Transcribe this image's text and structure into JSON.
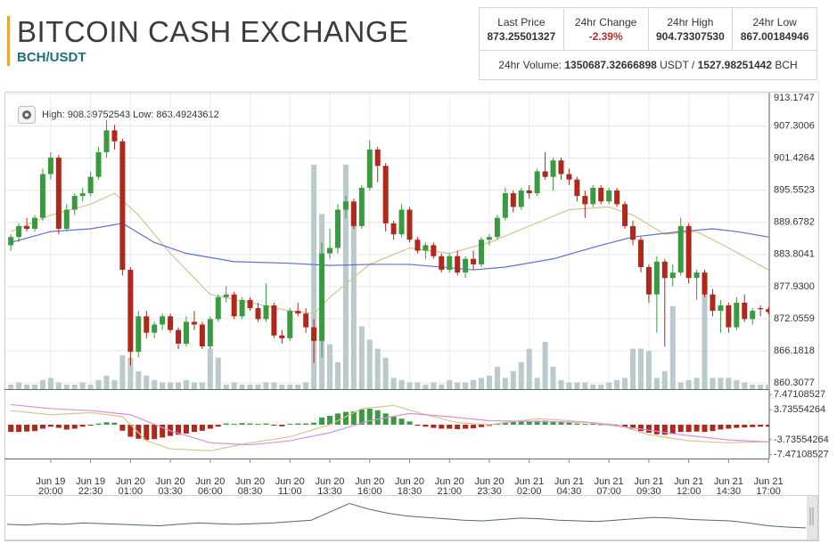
{
  "header": {
    "title": "BITCOIN CASH EXCHANGE",
    "pair": "BCH/USDT"
  },
  "stats": {
    "cells": [
      {
        "label": "Last Price",
        "value": "873.25501327"
      },
      {
        "label": "24hr Change",
        "value": "-2.39%"
      },
      {
        "label": "24hr High",
        "value": "904.73307530"
      },
      {
        "label": "24hr Low",
        "value": "867.00184946"
      }
    ],
    "volume": {
      "label": "24hr Volume:",
      "quote": "1350687.32666898",
      "quote_unit": "USDT /",
      "base": "1527.98251442",
      "base_unit": "BCH"
    }
  },
  "chart_data": [
    {
      "type": "candlestick",
      "annotation": "High: 908.39752543  Low: 863.49243612",
      "up_color": "#3a9a3f",
      "down_color": "#b0271c",
      "grid": true,
      "xlim": [
        -0.8,
        95.1
      ],
      "ylim": [
        859.2,
        913.4
      ],
      "yticks": [
        913.1747,
        907.3006,
        901.4264,
        895.5523,
        889.6782,
        883.8041,
        {
          "value": 877.93,
          "label": "877.9300"
        },
        872.0559,
        866.1818,
        860.3077
      ],
      "categories": [
        null,
        null,
        null,
        null,
        null,
        [
          "Jun 19",
          "20:00"
        ],
        null,
        null,
        null,
        null,
        [
          "Jun 19",
          "22:30"
        ],
        null,
        null,
        null,
        null,
        [
          "Jun 20",
          "01:00"
        ],
        null,
        null,
        null,
        null,
        [
          "Jun 20",
          "03:30"
        ],
        null,
        null,
        null,
        null,
        [
          "Jun 20",
          "06:00"
        ],
        null,
        null,
        null,
        null,
        [
          "Jun 20",
          "08:30"
        ],
        null,
        null,
        null,
        null,
        [
          "Jun 20",
          "11:00"
        ],
        null,
        null,
        null,
        null,
        [
          "Jun 20",
          "13:30"
        ],
        null,
        null,
        null,
        null,
        [
          "Jun 20",
          "16:00"
        ],
        null,
        null,
        null,
        null,
        [
          "Jun 20",
          "18:30"
        ],
        null,
        null,
        null,
        null,
        [
          "Jun 20",
          "21:00"
        ],
        null,
        null,
        null,
        null,
        [
          "Jun 20",
          "23:30"
        ],
        null,
        null,
        null,
        null,
        [
          "Jun 21",
          "02:00"
        ],
        null,
        null,
        null,
        null,
        [
          "Jun 21",
          "04:30"
        ],
        null,
        null,
        null,
        null,
        [
          "Jun 21",
          "07:00"
        ],
        null,
        null,
        null,
        null,
        [
          "Jun 21",
          "09:30"
        ],
        null,
        null,
        null,
        null,
        [
          "Jun 21",
          "12:00"
        ],
        null,
        null,
        null,
        null,
        [
          "Jun 21",
          "14:30"
        ],
        null,
        null,
        null,
        null,
        [
          "Jun 21",
          "17:00"
        ]
      ],
      "ohlc": [
        [
          885.5,
          887.5,
          884.5,
          887.0
        ],
        [
          887.0,
          889.5,
          886.0,
          889.0
        ],
        [
          889.0,
          890.5,
          888.0,
          888.5
        ],
        [
          888.5,
          891.0,
          888.0,
          890.5
        ],
        [
          890.5,
          899.5,
          890.0,
          898.5
        ],
        [
          898.5,
          902.5,
          897.5,
          901.5
        ],
        [
          901.5,
          902.0,
          887.5,
          888.5
        ],
        [
          888.5,
          893.0,
          888.0,
          892.0
        ],
        [
          892.0,
          895.0,
          891.0,
          894.5
        ],
        [
          894.5,
          896.0,
          893.5,
          895.0
        ],
        [
          895.0,
          899.0,
          894.5,
          898.0
        ],
        [
          898.0,
          903.5,
          897.5,
          902.5
        ],
        [
          902.5,
          908.4,
          901.5,
          906.5
        ],
        [
          906.5,
          907.5,
          903.0,
          904.5
        ],
        [
          904.5,
          905.0,
          880.0,
          881.0
        ],
        [
          881.0,
          881.5,
          863.5,
          866.0
        ],
        [
          866.0,
          873.5,
          865.0,
          872.5
        ],
        [
          872.5,
          873.5,
          868.5,
          869.5
        ],
        [
          869.5,
          871.5,
          868.5,
          871.0
        ],
        [
          871.0,
          873.0,
          870.0,
          872.5
        ],
        [
          872.5,
          873.0,
          869.5,
          870.0
        ],
        [
          870.0,
          870.5,
          866.5,
          867.5
        ],
        [
          867.5,
          872.5,
          867.0,
          871.5
        ],
        [
          871.5,
          873.5,
          870.0,
          871.0
        ],
        [
          871.0,
          871.5,
          866.5,
          867.0
        ],
        [
          867.0,
          872.5,
          866.5,
          872.0
        ],
        [
          872.0,
          876.5,
          871.5,
          876.0
        ],
        [
          876.0,
          878.0,
          875.0,
          876.5
        ],
        [
          876.5,
          877.0,
          872.0,
          872.5
        ],
        [
          872.5,
          876.0,
          872.0,
          875.5
        ],
        [
          875.5,
          876.0,
          873.5,
          874.0
        ],
        [
          874.0,
          875.0,
          871.5,
          872.0
        ],
        [
          872.0,
          878.5,
          871.5,
          874.5
        ],
        [
          874.5,
          875.0,
          868.5,
          869.0
        ],
        [
          869.0,
          870.0,
          867.5,
          868.5
        ],
        [
          868.5,
          874.0,
          868.0,
          873.5
        ],
        [
          873.5,
          875.0,
          872.5,
          873.0
        ],
        [
          873.0,
          874.0,
          869.5,
          870.5
        ],
        [
          870.5,
          872.0,
          864.0,
          868.0
        ],
        [
          868.0,
          886.0,
          865.0,
          884.0
        ],
        [
          884.0,
          888.5,
          883.0,
          885.0
        ],
        [
          885.0,
          893.0,
          884.0,
          892.0
        ],
        [
          892.0,
          894.5,
          890.5,
          893.5
        ],
        [
          893.5,
          894.0,
          888.5,
          889.0
        ],
        [
          889.0,
          896.5,
          888.5,
          896.0
        ],
        [
          896.0,
          904.7,
          895.5,
          903.0
        ],
        [
          903.0,
          903.5,
          897.0,
          900.0
        ],
        [
          900.0,
          900.5,
          888.0,
          889.5
        ],
        [
          889.5,
          890.0,
          886.5,
          887.5
        ],
        [
          887.5,
          893.0,
          887.0,
          892.0
        ],
        [
          892.0,
          892.5,
          886.0,
          886.5
        ],
        [
          886.5,
          887.0,
          884.0,
          884.5
        ],
        [
          884.5,
          886.0,
          883.0,
          885.5
        ],
        [
          885.5,
          886.0,
          883.0,
          883.5
        ],
        [
          883.5,
          884.0,
          880.5,
          881.0
        ],
        [
          881.0,
          884.0,
          880.5,
          883.5
        ],
        [
          883.5,
          884.5,
          880.0,
          880.5
        ],
        [
          880.5,
          883.5,
          879.5,
          883.0
        ],
        [
          883.0,
          884.5,
          881.0,
          882.0
        ],
        [
          882.0,
          887.0,
          881.5,
          886.5
        ],
        [
          886.5,
          887.5,
          885.5,
          887.0
        ],
        [
          887.0,
          891.0,
          886.5,
          890.5
        ],
        [
          890.5,
          896.0,
          890.0,
          895.0
        ],
        [
          895.0,
          895.5,
          891.5,
          892.5
        ],
        [
          892.5,
          896.0,
          892.0,
          895.5
        ],
        [
          895.5,
          896.5,
          894.0,
          895.0
        ],
        [
          895.0,
          899.5,
          894.5,
          899.0
        ],
        [
          899.0,
          902.5,
          897.5,
          898.0
        ],
        [
          898.0,
          901.5,
          895.5,
          901.0
        ],
        [
          901.0,
          901.5,
          897.5,
          898.5
        ],
        [
          898.5,
          899.5,
          896.5,
          897.5
        ],
        [
          897.5,
          898.0,
          893.5,
          894.5
        ],
        [
          894.5,
          895.5,
          890.5,
          893.0
        ],
        [
          893.0,
          896.5,
          892.5,
          896.0
        ],
        [
          896.0,
          896.5,
          893.0,
          893.5
        ],
        [
          893.5,
          896.0,
          893.0,
          895.5
        ],
        [
          895.5,
          896.0,
          892.5,
          893.0
        ],
        [
          893.0,
          893.5,
          888.5,
          889.0
        ],
        [
          889.0,
          890.0,
          885.5,
          886.5
        ],
        [
          886.5,
          887.0,
          880.5,
          881.5
        ],
        [
          881.5,
          882.0,
          875.0,
          876.5
        ],
        [
          876.5,
          883.5,
          869.5,
          882.5
        ],
        [
          882.5,
          883.0,
          867.0,
          879.5
        ],
        [
          879.5,
          882.0,
          878.0,
          880.5
        ],
        [
          880.5,
          890.5,
          880.0,
          889.0
        ],
        [
          889.0,
          889.5,
          878.5,
          879.5
        ],
        [
          879.5,
          881.0,
          875.5,
          880.5
        ],
        [
          880.5,
          881.0,
          876.0,
          876.5
        ],
        [
          876.5,
          877.5,
          872.5,
          873.5
        ],
        [
          873.5,
          875.5,
          869.5,
          874.5
        ],
        [
          874.5,
          875.0,
          869.5,
          870.5
        ],
        [
          870.5,
          876.0,
          870.0,
          875.0
        ],
        [
          875.0,
          876.5,
          871.5,
          872.0
        ],
        [
          872.0,
          874.0,
          871.0,
          873.5
        ],
        [
          874.0,
          874.5,
          872.5,
          873.8
        ],
        [
          873.8,
          874.2,
          872.9,
          873.3
        ]
      ],
      "volume": {
        "color": "#b9c9cc",
        "ylim": [
          0,
          100
        ],
        "values": [
          2,
          3,
          2,
          2,
          4,
          5,
          3,
          2,
          2,
          3,
          2,
          4,
          6,
          4,
          15,
          14,
          8,
          6,
          4,
          3,
          3,
          3,
          4,
          3,
          3,
          18,
          14,
          2,
          3,
          2,
          2,
          2,
          3,
          3,
          2,
          2,
          2,
          3,
          100,
          78,
          20,
          12,
          100,
          82,
          28,
          22,
          18,
          14,
          5,
          4,
          3,
          3,
          2,
          3,
          2,
          4,
          3,
          3,
          4,
          5,
          6,
          10,
          5,
          8,
          12,
          18,
          5,
          21,
          10,
          4,
          3,
          3,
          3,
          2,
          2,
          3,
          4,
          5,
          18,
          18,
          17,
          5,
          8,
          37,
          3,
          4,
          5,
          52,
          5,
          5,
          5,
          4,
          3,
          2,
          2,
          2
        ]
      },
      "lines": [
        {
          "color": "#d6c38c",
          "x": [
            0,
            5,
            10,
            13,
            16,
            20,
            25,
            30,
            35,
            38,
            40,
            45,
            50,
            55,
            60,
            65,
            70,
            75,
            78,
            82,
            86,
            90,
            95
          ],
          "values": [
            888,
            891,
            893,
            895,
            891,
            884,
            876.5,
            875,
            873.5,
            873,
            876,
            882,
            885,
            884,
            886,
            889,
            892,
            892.5,
            891,
            887.5,
            888,
            885,
            881
          ]
        },
        {
          "color": "#5b6fd2",
          "x": [
            0,
            5,
            10,
            14,
            18,
            22,
            28,
            35,
            40,
            45,
            50,
            58,
            62,
            68,
            74,
            78,
            84,
            88,
            91,
            95
          ],
          "values": [
            886,
            888,
            888.5,
            889.5,
            886,
            884,
            882.5,
            882.2,
            881.8,
            882,
            882,
            881,
            881.5,
            883,
            885.5,
            887,
            888,
            888.5,
            888,
            887
          ]
        }
      ]
    },
    {
      "type": "macd",
      "up_color": "#3a9a3f",
      "down_color": "#b0271c",
      "ylim": [
        -8.2,
        8.2
      ],
      "yticks": [
        7.47108527,
        3.73554264,
        -3.73554264,
        -7.47108527
      ],
      "values": [
        -1.8,
        -1.8,
        -1.7,
        -1.6,
        -1.0,
        -0.5,
        -0.8,
        -1.2,
        -1.0,
        -0.5,
        -0.2,
        0.3,
        0.6,
        0.5,
        -1.5,
        -3.0,
        -3.5,
        -3.8,
        -3.6,
        -3.2,
        -2.8,
        -2.5,
        -2.2,
        -1.8,
        -1.5,
        -1.0,
        -0.5,
        0.3,
        0.2,
        0.4,
        0.3,
        0.2,
        0.3,
        -0.2,
        -0.4,
        0.2,
        0.3,
        0.3,
        0.5,
        1.8,
        2.2,
        2.8,
        3.2,
        3.3,
        3.8,
        4.0,
        3.6,
        2.8,
        2.0,
        1.5,
        0.8,
        -0.2,
        -0.5,
        -0.8,
        -1.0,
        -1.0,
        -1.1,
        -1.0,
        -0.9,
        -0.6,
        -0.3,
        0.2,
        0.6,
        0.7,
        0.8,
        0.9,
        1.0,
        1.0,
        0.9,
        0.7,
        0.5,
        0.3,
        0.2,
        0.2,
        0.1,
        0.1,
        -0.2,
        -0.5,
        -1.0,
        -1.6,
        -2.0,
        -2.4,
        -2.5,
        -2.3,
        -1.8,
        -1.8,
        -1.7,
        -1.8,
        -1.6,
        -1.2,
        -1.0,
        -0.8,
        -0.7,
        -0.6,
        -0.5,
        -0.5
      ],
      "lines": [
        {
          "color": "#d6c38c",
          "x": [
            0,
            5,
            10,
            14,
            17,
            20,
            25,
            30,
            35,
            40,
            44,
            48,
            52,
            56,
            60,
            66,
            70,
            76,
            80,
            85,
            90,
            95
          ],
          "values": [
            3.5,
            2.5,
            3.0,
            2.0,
            -4.0,
            -6.0,
            -6.5,
            -4.5,
            -3.0,
            0.0,
            4.0,
            4.8,
            2.5,
            0.5,
            0.0,
            1.5,
            1.0,
            0.0,
            -2.5,
            -4.0,
            -4.5,
            -4.2
          ]
        },
        {
          "color": "#d98fd9",
          "x": [
            0,
            5,
            10,
            15,
            20,
            25,
            30,
            35,
            40,
            45,
            50,
            55,
            60,
            66,
            72,
            78,
            84,
            90,
            95
          ],
          "values": [
            5.0,
            4.0,
            3.5,
            2.5,
            -1.5,
            -4.5,
            -5.0,
            -4.0,
            -2.0,
            1.0,
            2.8,
            2.0,
            1.0,
            0.8,
            0.6,
            -0.8,
            -2.5,
            -3.8,
            -4.3
          ]
        }
      ]
    },
    {
      "type": "line",
      "color": "#4d6b6b",
      "ylim": [
        860,
        915
      ],
      "values": [
        878,
        877,
        879,
        878,
        880,
        879,
        878,
        877,
        876,
        878,
        880,
        879,
        878,
        879,
        880,
        882,
        884,
        896,
        908,
        900,
        894,
        890,
        888,
        886,
        884,
        883,
        885,
        887,
        886,
        884,
        883,
        882,
        884,
        886,
        888,
        887,
        885,
        884,
        883,
        880,
        876,
        874,
        873
      ]
    }
  ]
}
